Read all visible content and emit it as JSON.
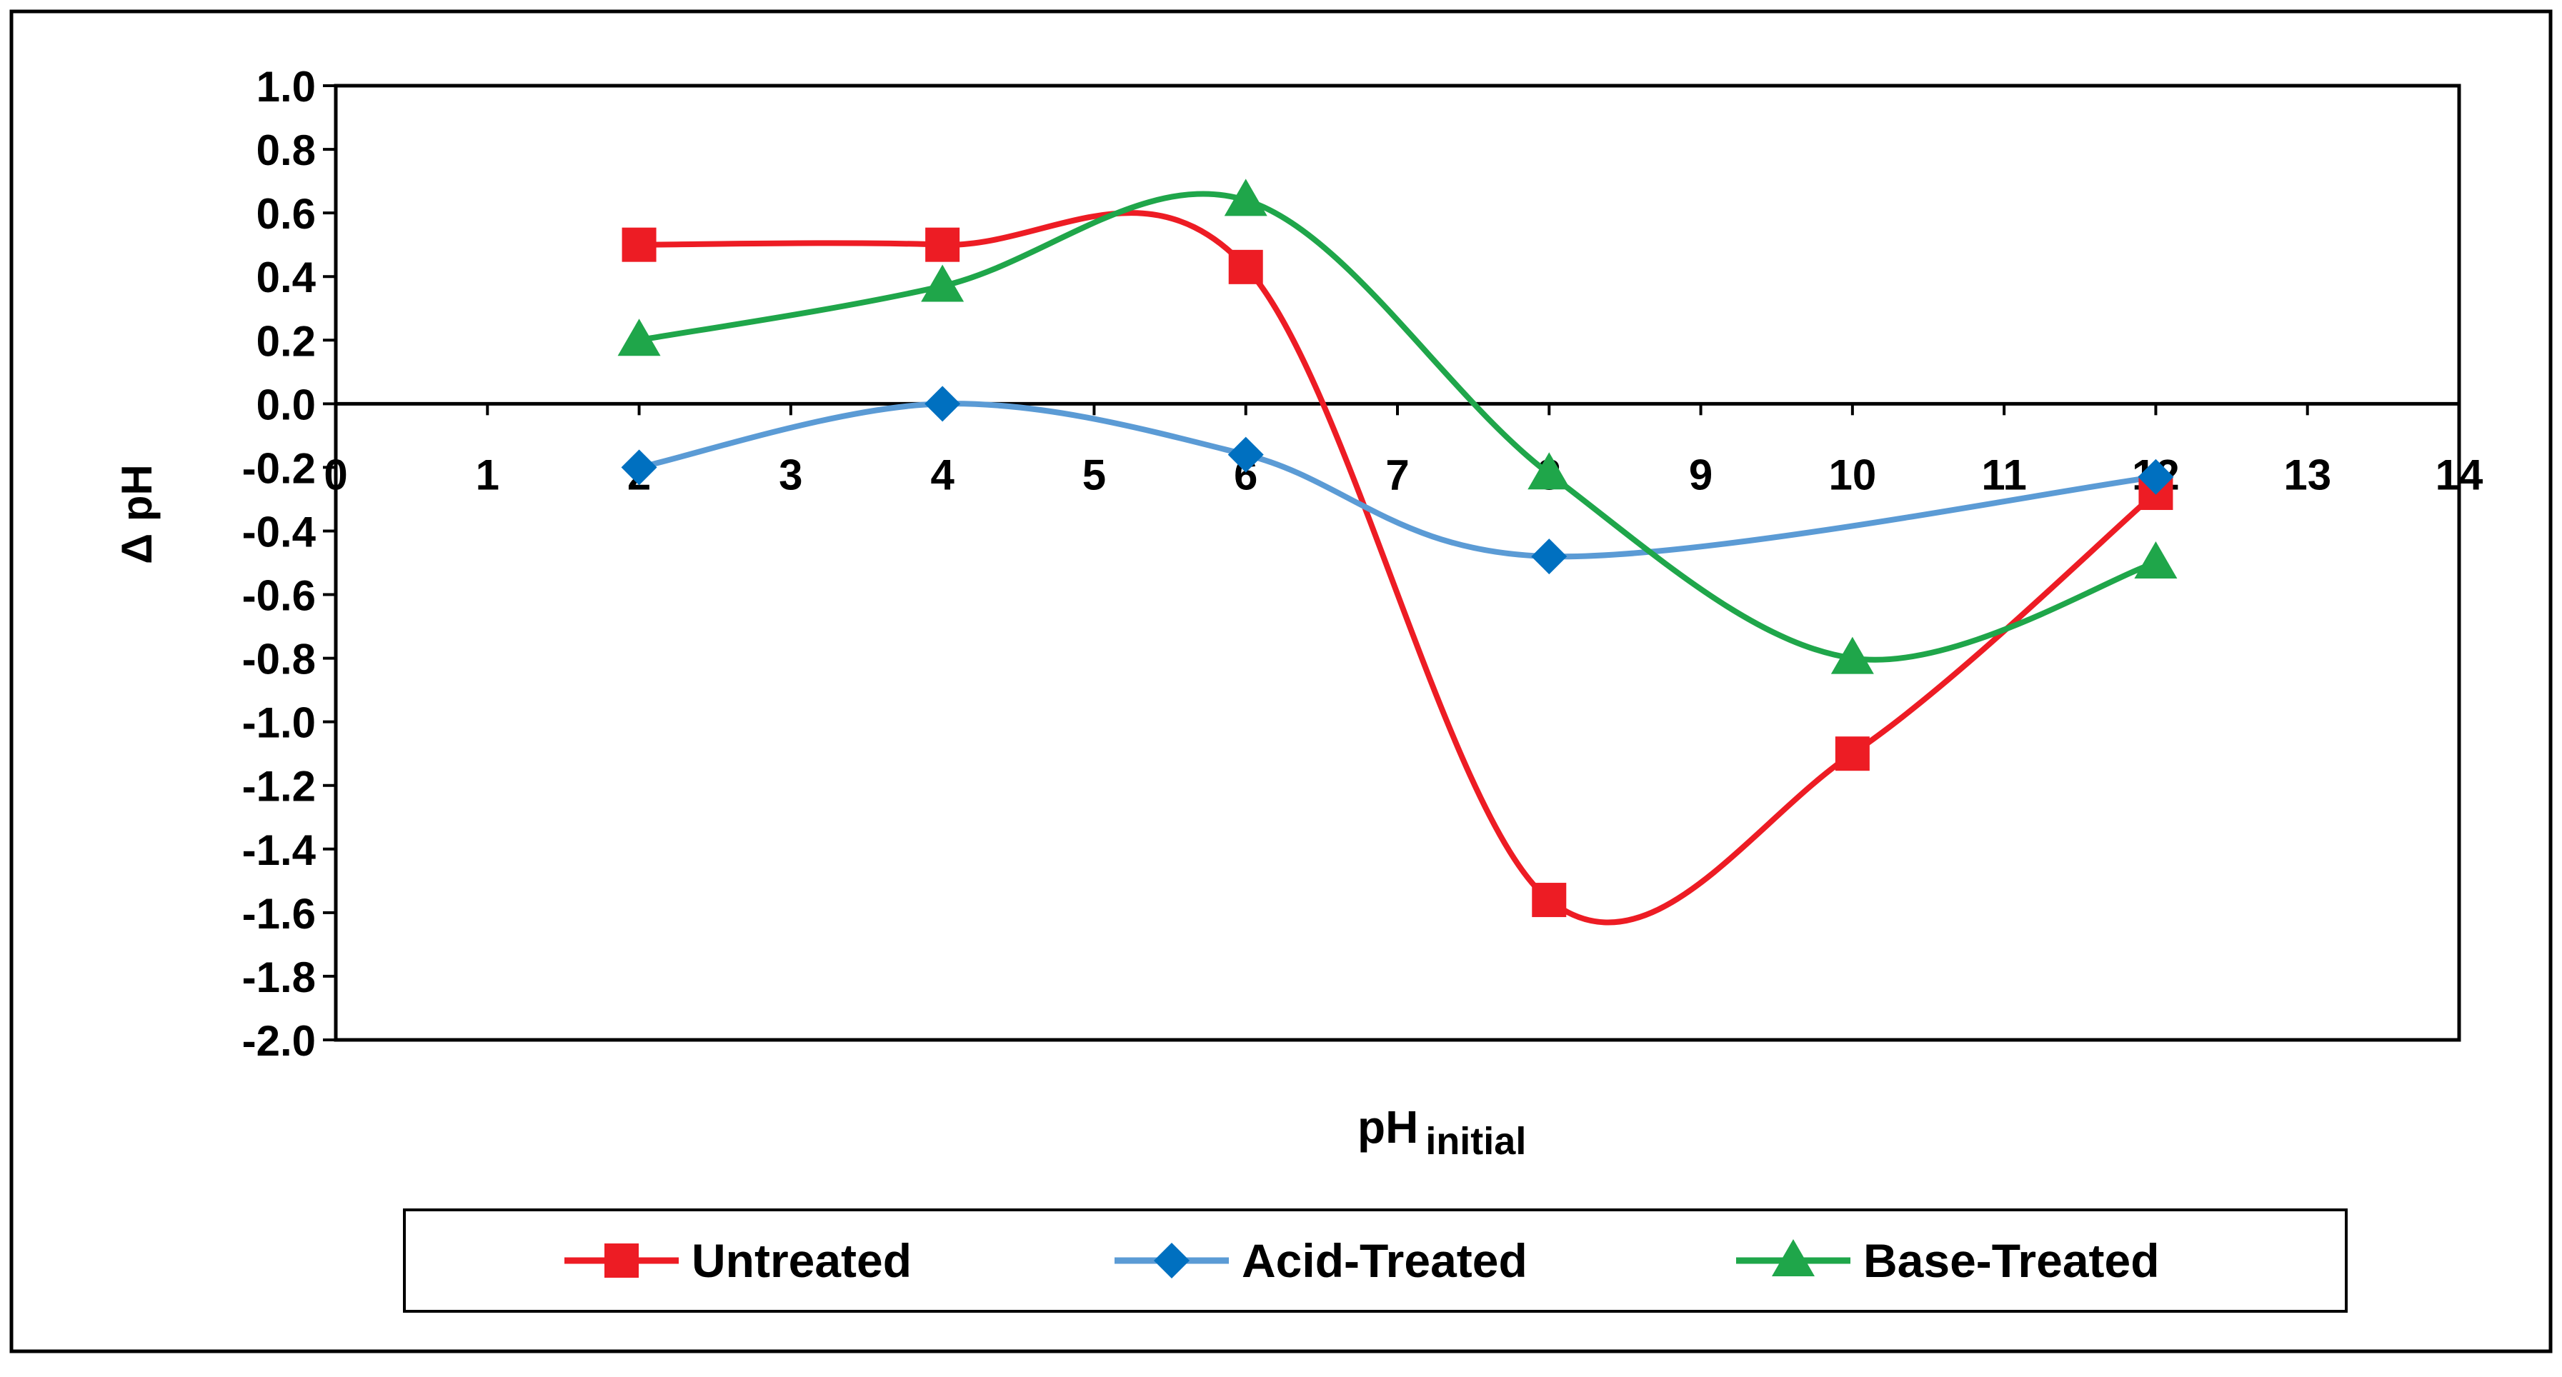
{
  "chart_data": {
    "type": "line",
    "title": "",
    "xlabel": "pH",
    "xlabel_sub": "initial",
    "ylabel": "Δ pH",
    "xlim": [
      0,
      14
    ],
    "ylim": [
      -2.0,
      1.0
    ],
    "x_ticks": [
      "0",
      "1",
      "2",
      "3",
      "4",
      "5",
      "6",
      "7",
      "8",
      "9",
      "10",
      "11",
      "12",
      "13",
      "14"
    ],
    "y_ticks": [
      "1.0",
      "0.8",
      "0.6",
      "0.4",
      "0.2",
      "0.0",
      "-0.2",
      "-0.4",
      "-0.6",
      "-0.8",
      "-1.0",
      "-1.2",
      "-1.4",
      "-1.6",
      "-1.8",
      "-2.0"
    ],
    "grid": false,
    "smoothed": true,
    "legend_position": "bottom",
    "x": [
      2,
      4,
      6,
      8,
      10,
      12
    ],
    "series": [
      {
        "name": "Untreated",
        "color": "#ed1c24",
        "marker": "square",
        "values": [
          0.5,
          0.5,
          0.43,
          -1.56,
          -1.1,
          -0.28
        ]
      },
      {
        "name": "Acid-Treated",
        "color": "#5b9bd5",
        "marker_color": "#0070c0",
        "marker": "diamond",
        "values": [
          -0.2,
          0.0,
          -0.16,
          -0.48,
          null,
          -0.23
        ]
      },
      {
        "name": "Base-Treated",
        "color": "#1fa64a",
        "marker": "triangle",
        "values": [
          0.2,
          0.37,
          0.64,
          -0.22,
          -0.8,
          -0.5
        ]
      }
    ]
  }
}
